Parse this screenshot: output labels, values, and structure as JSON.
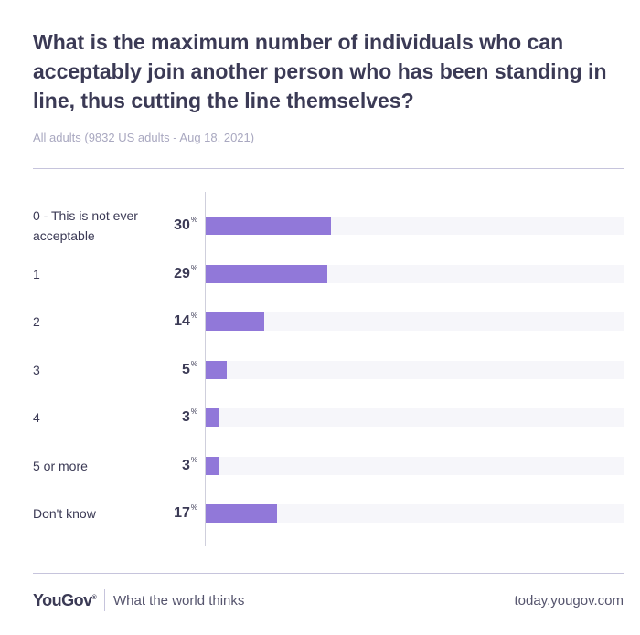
{
  "header": {
    "title": "What is the maximum number of individuals who can acceptably join another person who has been standing in line, thus cutting the line themselves?",
    "subtitle": "All adults (9832 US adults - Aug 18, 2021)"
  },
  "chart_data": {
    "type": "bar",
    "orientation": "horizontal",
    "title": "What is the maximum number of individuals who can acceptably join another person who has been standing in line, thus cutting the line themselves?",
    "subtitle": "All adults (9832 US adults - Aug 18, 2021)",
    "categories": [
      "0 - This is not ever acceptable",
      "1",
      "2",
      "3",
      "4",
      "5 or more",
      "Don't know"
    ],
    "values": [
      30,
      29,
      14,
      5,
      3,
      3,
      17
    ],
    "value_labels": [
      "30",
      "29",
      "14",
      "5",
      "3",
      "3",
      "17"
    ],
    "unit": "%",
    "xlim": [
      0,
      100
    ],
    "grid": false,
    "colors": {
      "bar": "#9178d9",
      "track": "#f6f6fa"
    }
  },
  "footer": {
    "brand": "YouGov",
    "brand_mark": "®",
    "tagline": "What the world thinks",
    "url": "today.yougov.com"
  }
}
